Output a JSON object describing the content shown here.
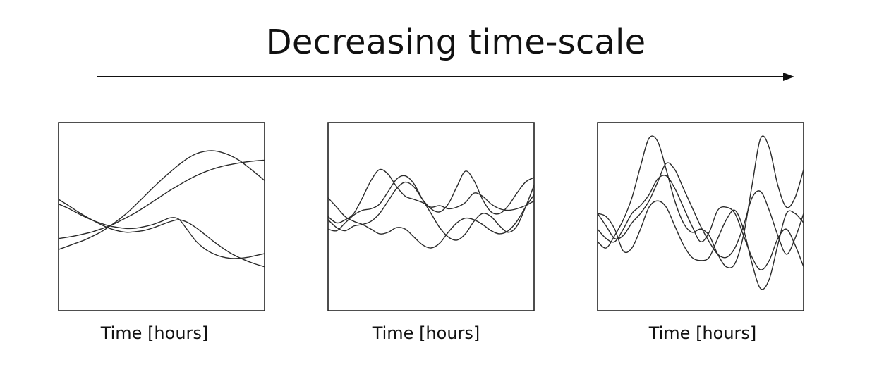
{
  "title": "Decreasing time-scale",
  "chart_data": [
    {
      "type": "line",
      "xlabel": "Time [hours]",
      "ylabel": "",
      "x": [
        0,
        0.0417,
        0.0833,
        0.125,
        0.1667,
        0.2083,
        0.25,
        0.2917,
        0.3333,
        0.375,
        0.4167,
        0.4583,
        0.5,
        0.5417,
        0.5833,
        0.625,
        0.6667,
        0.7083,
        0.75,
        0.7917,
        0.8333,
        0.875,
        0.9167,
        0.9583,
        1
      ],
      "ylim": [
        -3,
        3
      ],
      "series": [
        {
          "values": [
            -1.05,
            -0.95,
            -0.85,
            -0.75,
            -0.62,
            -0.48,
            -0.3,
            -0.1,
            0.12,
            0.38,
            0.65,
            0.92,
            1.18,
            1.42,
            1.65,
            1.85,
            2.0,
            2.08,
            2.1,
            2.05,
            1.95,
            1.8,
            1.6,
            1.38,
            1.15
          ]
        },
        {
          "values": [
            -0.7,
            -0.66,
            -0.61,
            -0.55,
            -0.48,
            -0.39,
            -0.29,
            -0.16,
            -0.02,
            0.13,
            0.3,
            0.48,
            0.66,
            0.84,
            1.0,
            1.16,
            1.3,
            1.42,
            1.52,
            1.6,
            1.66,
            1.71,
            1.75,
            1.78,
            1.8
          ]
        },
        {
          "values": [
            0.55,
            0.38,
            0.2,
            0.03,
            -0.12,
            -0.26,
            -0.38,
            -0.46,
            -0.5,
            -0.48,
            -0.44,
            -0.36,
            -0.26,
            -0.16,
            -0.1,
            -0.18,
            -0.35,
            -0.56,
            -0.78,
            -0.98,
            -1.16,
            -1.3,
            -1.42,
            -1.52,
            -1.6
          ]
        },
        {
          "values": [
            0.4,
            0.28,
            0.14,
            0.0,
            -0.12,
            -0.22,
            -0.3,
            -0.35,
            -0.38,
            -0.37,
            -0.32,
            -0.25,
            -0.15,
            -0.04,
            -0.08,
            -0.42,
            -0.78,
            -1.02,
            -1.18,
            -1.28,
            -1.33,
            -1.33,
            -1.3,
            -1.24,
            -1.18
          ]
        }
      ]
    },
    {
      "type": "line",
      "xlabel": "Time [hours]",
      "ylabel": "",
      "x": [
        0,
        0.0417,
        0.0833,
        0.125,
        0.1667,
        0.2083,
        0.25,
        0.2917,
        0.3333,
        0.375,
        0.4167,
        0.4583,
        0.5,
        0.5417,
        0.5833,
        0.625,
        0.6667,
        0.7083,
        0.75,
        0.7917,
        0.8333,
        0.875,
        0.9167,
        0.9583,
        1
      ],
      "ylim": [
        -3,
        3
      ],
      "series": [
        {
          "values": [
            0.0,
            -0.2,
            -0.1,
            0.1,
            0.6,
            1.15,
            1.5,
            1.35,
            0.95,
            0.65,
            0.55,
            0.45,
            0.3,
            0.35,
            0.25,
            0.3,
            0.45,
            0.75,
            0.65,
            0.4,
            0.25,
            0.2,
            0.25,
            0.35,
            0.5
          ]
        },
        {
          "values": [
            -0.4,
            -0.45,
            -0.2,
            0.05,
            0.2,
            0.25,
            0.4,
            0.8,
            1.2,
            1.3,
            1.05,
            0.55,
            0.1,
            -0.35,
            -0.65,
            -0.75,
            -0.55,
            -0.15,
            0.1,
            0.0,
            -0.3,
            -0.5,
            -0.3,
            0.3,
            1.0
          ]
        },
        {
          "values": [
            -0.1,
            -0.35,
            -0.45,
            -0.3,
            -0.25,
            -0.15,
            0.1,
            0.5,
            0.9,
            1.1,
            0.95,
            0.55,
            0.25,
            0.15,
            0.4,
            0.95,
            1.45,
            1.15,
            0.55,
            0.15,
            0.1,
            0.35,
            0.75,
            1.1,
            1.25
          ]
        },
        {
          "values": [
            0.6,
            0.3,
            0.0,
            -0.15,
            -0.25,
            -0.4,
            -0.55,
            -0.5,
            -0.35,
            -0.4,
            -0.65,
            -0.9,
            -1.0,
            -0.85,
            -0.5,
            -0.2,
            -0.05,
            -0.1,
            -0.25,
            -0.45,
            -0.55,
            -0.45,
            -0.15,
            0.3,
            0.7
          ]
        }
      ]
    },
    {
      "type": "line",
      "xlabel": "Time [hours]",
      "ylabel": "",
      "x": [
        0,
        0.0417,
        0.0833,
        0.125,
        0.1667,
        0.2083,
        0.25,
        0.2917,
        0.3333,
        0.375,
        0.4167,
        0.4583,
        0.5,
        0.5417,
        0.5833,
        0.625,
        0.6667,
        0.7083,
        0.75,
        0.7917,
        0.8333,
        0.875,
        0.9167,
        0.9583,
        1
      ],
      "ylim": [
        -3,
        3
      ],
      "series": [
        {
          "values": [
            -0.8,
            -1.0,
            -0.6,
            -0.1,
            0.6,
            1.6,
            2.5,
            2.4,
            1.5,
            0.5,
            -0.2,
            -0.5,
            -0.4,
            -0.6,
            -1.2,
            -1.6,
            -1.5,
            -0.6,
            1.0,
            2.5,
            2.2,
            1.0,
            0.3,
            0.6,
            1.5
          ]
        },
        {
          "values": [
            0.1,
            -0.3,
            -0.7,
            -0.6,
            -0.2,
            0.1,
            0.5,
            1.1,
            1.7,
            1.5,
            0.9,
            0.3,
            -0.3,
            -0.8,
            -1.2,
            -1.3,
            -1.0,
            -0.3,
            0.6,
            0.8,
            0.2,
            -0.6,
            -1.2,
            -0.7,
            0.1
          ]
        },
        {
          "values": [
            -0.4,
            -0.7,
            -0.8,
            -0.4,
            0.1,
            0.35,
            0.7,
            1.2,
            1.3,
            0.9,
            0.3,
            -0.3,
            -0.8,
            -0.5,
            0.2,
            0.3,
            0.1,
            -0.6,
            -1.3,
            -1.7,
            -1.4,
            -0.7,
            -0.4,
            -0.9,
            -1.6
          ]
        },
        {
          "values": [
            0.1,
            0.0,
            -0.4,
            -1.1,
            -1.0,
            -0.4,
            0.3,
            0.5,
            0.3,
            -0.3,
            -0.9,
            -1.3,
            -1.4,
            -1.3,
            -0.7,
            -0.1,
            0.2,
            -0.4,
            -1.5,
            -2.3,
            -2.0,
            -0.9,
            0.1,
            0.1,
            -0.2
          ]
        }
      ]
    }
  ]
}
